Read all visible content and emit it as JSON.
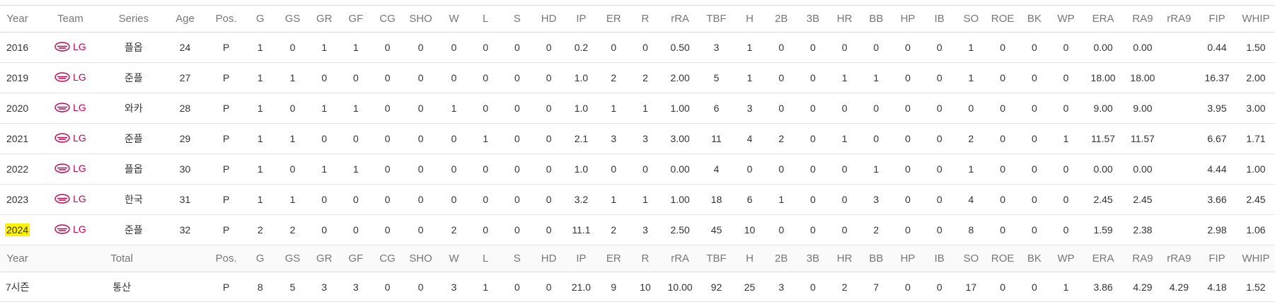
{
  "table": {
    "headers": [
      "Year",
      "Team",
      "Series",
      "Age",
      "Pos.",
      "G",
      "GS",
      "GR",
      "GF",
      "CG",
      "SHO",
      "W",
      "L",
      "S",
      "HD",
      "IP",
      "ER",
      "R",
      "rRA",
      "TBF",
      "H",
      "2B",
      "3B",
      "HR",
      "BB",
      "HP",
      "IB",
      "SO",
      "ROE",
      "BK",
      "WP",
      "ERA",
      "RA9",
      "rRA9",
      "FIP",
      "WHIP"
    ],
    "rows": [
      {
        "year": "2016",
        "team": "LG",
        "series": "플옵",
        "stats": [
          "24",
          "P",
          "1",
          "0",
          "1",
          "1",
          "0",
          "0",
          "0",
          "0",
          "0",
          "0",
          "0.2",
          "0",
          "0",
          "0.50",
          "3",
          "1",
          "0",
          "0",
          "0",
          "0",
          "0",
          "0",
          "1",
          "0",
          "0",
          "0",
          "0.00",
          "0.00",
          "",
          "0.44",
          "1.50"
        ]
      },
      {
        "year": "2019",
        "team": "LG",
        "series": "준플",
        "stats": [
          "27",
          "P",
          "1",
          "1",
          "0",
          "0",
          "0",
          "0",
          "0",
          "0",
          "0",
          "0",
          "1.0",
          "2",
          "2",
          "2.00",
          "5",
          "1",
          "0",
          "0",
          "1",
          "1",
          "0",
          "0",
          "1",
          "0",
          "0",
          "0",
          "18.00",
          "18.00",
          "",
          "16.37",
          "2.00"
        ]
      },
      {
        "year": "2020",
        "team": "LG",
        "series": "와카",
        "stats": [
          "28",
          "P",
          "1",
          "0",
          "1",
          "1",
          "0",
          "0",
          "1",
          "0",
          "0",
          "0",
          "1.0",
          "1",
          "1",
          "1.00",
          "6",
          "3",
          "0",
          "0",
          "0",
          "0",
          "0",
          "0",
          "0",
          "0",
          "0",
          "0",
          "9.00",
          "9.00",
          "",
          "3.95",
          "3.00"
        ]
      },
      {
        "year": "2021",
        "team": "LG",
        "series": "준플",
        "stats": [
          "29",
          "P",
          "1",
          "1",
          "0",
          "0",
          "0",
          "0",
          "0",
          "1",
          "0",
          "0",
          "2.1",
          "3",
          "3",
          "3.00",
          "11",
          "4",
          "2",
          "0",
          "1",
          "0",
          "0",
          "0",
          "2",
          "0",
          "0",
          "1",
          "11.57",
          "11.57",
          "",
          "6.67",
          "1.71"
        ]
      },
      {
        "year": "2022",
        "team": "LG",
        "series": "플옵",
        "stats": [
          "30",
          "P",
          "1",
          "0",
          "1",
          "1",
          "0",
          "0",
          "0",
          "0",
          "0",
          "0",
          "1.0",
          "0",
          "0",
          "0.00",
          "4",
          "0",
          "0",
          "0",
          "0",
          "1",
          "0",
          "0",
          "1",
          "0",
          "0",
          "0",
          "0.00",
          "0.00",
          "",
          "4.44",
          "1.00"
        ]
      },
      {
        "year": "2023",
        "team": "LG",
        "series": "한국",
        "stats": [
          "31",
          "P",
          "1",
          "1",
          "0",
          "0",
          "0",
          "0",
          "0",
          "0",
          "0",
          "0",
          "3.2",
          "1",
          "1",
          "1.00",
          "18",
          "6",
          "1",
          "0",
          "0",
          "3",
          "0",
          "0",
          "4",
          "0",
          "0",
          "0",
          "2.45",
          "2.45",
          "",
          "3.66",
          "2.45"
        ]
      },
      {
        "year": "2024",
        "team": "LG",
        "series": "준플",
        "highlight": true,
        "stats": [
          "32",
          "P",
          "2",
          "2",
          "0",
          "0",
          "0",
          "0",
          "2",
          "0",
          "0",
          "0",
          "11.1",
          "2",
          "3",
          "2.50",
          "45",
          "10",
          "0",
          "0",
          "0",
          "2",
          "0",
          "0",
          "8",
          "0",
          "0",
          "0",
          "1.59",
          "2.38",
          "",
          "2.98",
          "1.06"
        ]
      }
    ],
    "total_headers": [
      "Year",
      "Total",
      "Pos.",
      "G",
      "GS",
      "GR",
      "GF",
      "CG",
      "SHO",
      "W",
      "L",
      "S",
      "HD",
      "IP",
      "ER",
      "R",
      "rRA",
      "TBF",
      "H",
      "2B",
      "3B",
      "HR",
      "BB",
      "HP",
      "IB",
      "SO",
      "ROE",
      "BK",
      "WP",
      "ERA",
      "RA9",
      "rRA9",
      "FIP",
      "WHIP"
    ],
    "total_row": {
      "year": "7시즌",
      "label": "통산",
      "stats": [
        "P",
        "8",
        "5",
        "3",
        "3",
        "0",
        "0",
        "3",
        "1",
        "0",
        "0",
        "21.0",
        "9",
        "10",
        "10.00",
        "92",
        "25",
        "3",
        "0",
        "2",
        "7",
        "0",
        "0",
        "17",
        "0",
        "0",
        "1",
        "3.86",
        "4.29",
        "4.29",
        "4.18",
        "1.52"
      ]
    }
  },
  "colors": {
    "team_accent": "#c30452",
    "highlight": "#fff200"
  },
  "icons": {
    "team_logo": "lg-twins-logo-icon"
  }
}
